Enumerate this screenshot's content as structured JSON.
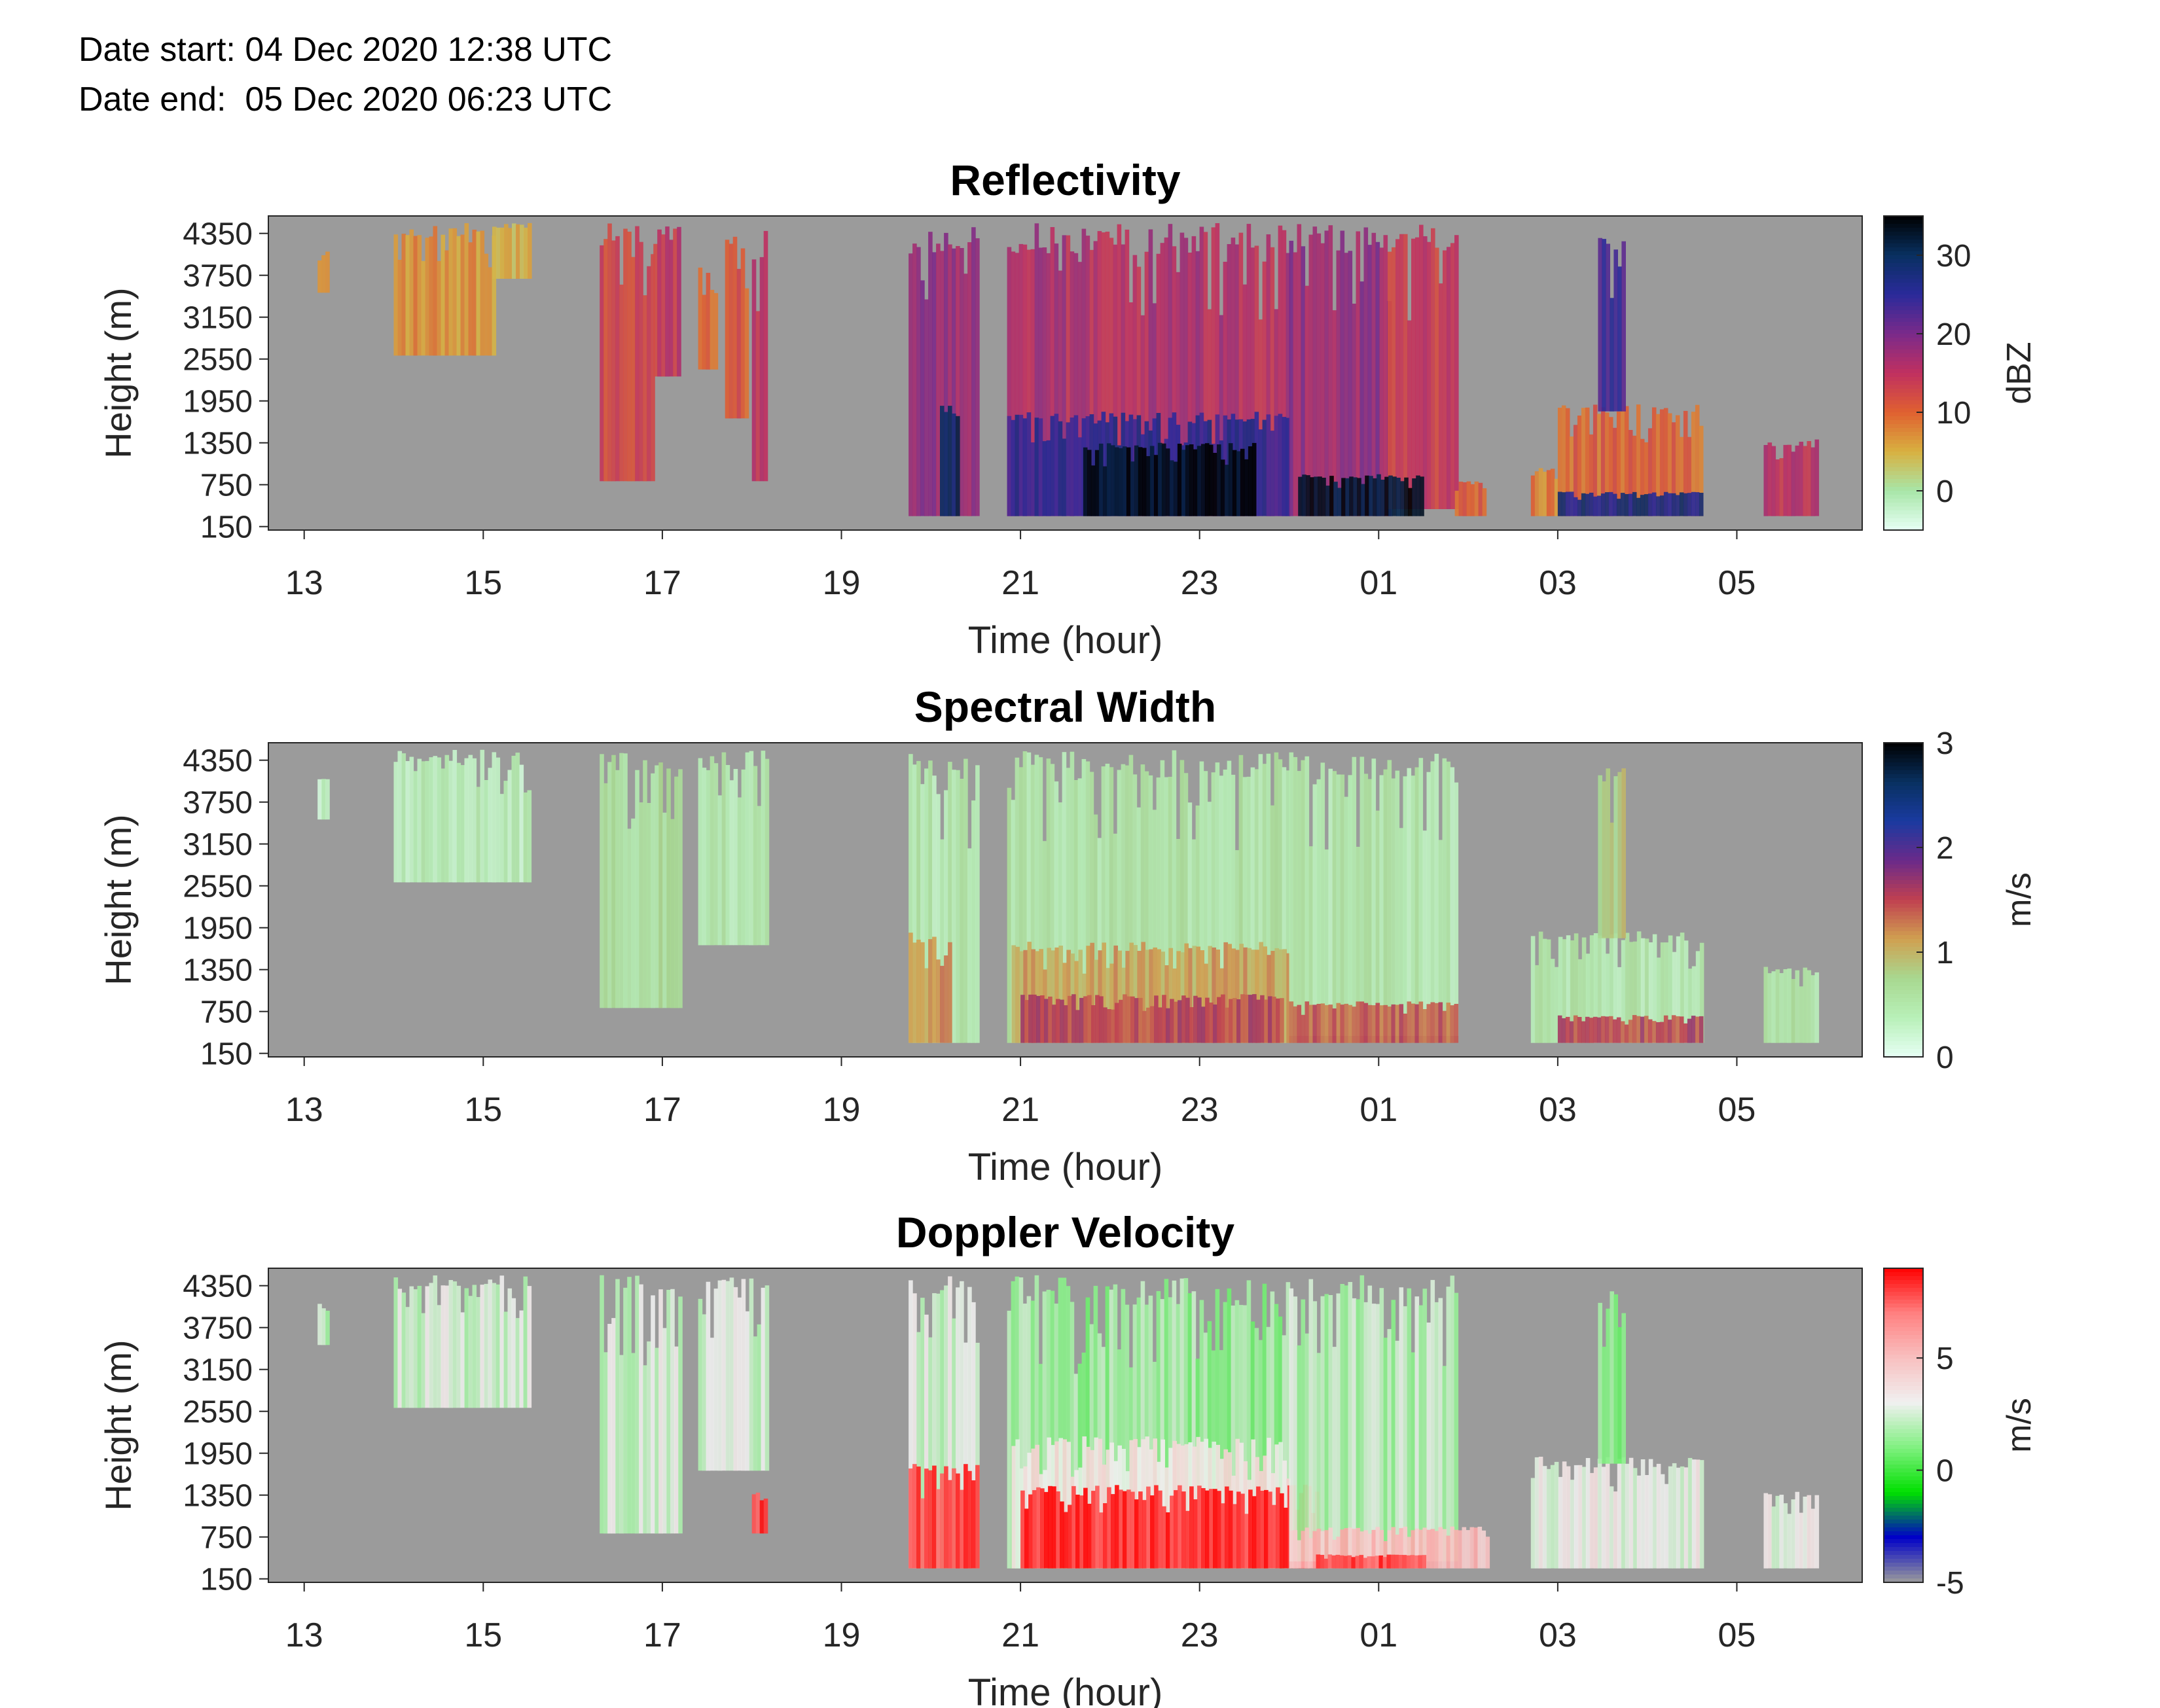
{
  "header": {
    "date_start": "Date start: 04 Dec 2020 12:38 UTC",
    "date_end": "Date end:  05 Dec 2020 06:23 UTC"
  },
  "chart_data": [
    {
      "type": "heatmap",
      "title": "Reflectivity",
      "xlabel": "Time (hour)",
      "ylabel": "Height (m)",
      "x_ticks": [
        "13",
        "15",
        "17",
        "19",
        "21",
        "23",
        "01",
        "03",
        "05"
      ],
      "y_ticks": [
        "4350",
        "3750",
        "3150",
        "2550",
        "1950",
        "1350",
        "750",
        "150"
      ],
      "colorbar_label": "dBZ",
      "colorbar_ticks": [
        "30",
        "20",
        "10",
        "0"
      ],
      "colorbar_range": [
        -5,
        35
      ],
      "colormap": [
        "#e6fff4",
        "#a8e6a8",
        "#d8b040",
        "#e06030",
        "#c03060",
        "#7a2a8a",
        "#2a2a9a",
        "#083060",
        "#000000"
      ],
      "no_data_color": "#9b9b9b",
      "echoes": [
        {
          "t0": 13.15,
          "t1": 13.25,
          "h0": 3500,
          "h1": 4100,
          "v": 6
        },
        {
          "t0": 14.0,
          "t1": 15.1,
          "h0": 2600,
          "h1": 4500,
          "v": 7
        },
        {
          "t0": 15.1,
          "t1": 15.5,
          "h0": 3700,
          "h1": 4500,
          "v": 5
        },
        {
          "t0": 16.3,
          "t1": 16.9,
          "h0": 800,
          "h1": 4500,
          "v": 12
        },
        {
          "t0": 16.9,
          "t1": 17.2,
          "h0": 2300,
          "h1": 4500,
          "v": 14
        },
        {
          "t0": 17.4,
          "t1": 17.6,
          "h0": 2400,
          "h1": 3900,
          "v": 10
        },
        {
          "t0": 17.7,
          "t1": 17.95,
          "h0": 1700,
          "h1": 4400,
          "v": 11
        },
        {
          "t0": 18.0,
          "t1": 18.15,
          "h0": 800,
          "h1": 4500,
          "v": 14
        },
        {
          "t0": 19.75,
          "t1": 20.5,
          "h0": 300,
          "h1": 4500,
          "v": 18
        },
        {
          "t0": 20.1,
          "t1": 20.3,
          "h0": 300,
          "h1": 1900,
          "v": 30
        },
        {
          "t0": 20.85,
          "t1": 24.0,
          "h0": 300,
          "h1": 4500,
          "v": 16
        },
        {
          "t0": 20.85,
          "t1": 24.0,
          "h0": 300,
          "h1": 1800,
          "v": 25
        },
        {
          "t0": 21.7,
          "t1": 23.6,
          "h0": 300,
          "h1": 1350,
          "v": 34
        },
        {
          "t0": 24.0,
          "t1": 25.1,
          "h0": 300,
          "h1": 4500,
          "v": 18
        },
        {
          "t0": 25.1,
          "t1": 25.85,
          "h0": 400,
          "h1": 4500,
          "v": 14
        },
        {
          "t0": 24.1,
          "t1": 25.5,
          "h0": 300,
          "h1": 900,
          "v": 33
        },
        {
          "t0": 25.85,
          "t1": 26.2,
          "h0": 300,
          "h1": 800,
          "v": 10
        },
        {
          "t0": 26.7,
          "t1": 27.0,
          "h0": 300,
          "h1": 1000,
          "v": 8
        },
        {
          "t0": 27.0,
          "t1": 28.6,
          "h0": 300,
          "h1": 1900,
          "v": 10
        },
        {
          "t0": 27.0,
          "t1": 28.6,
          "h0": 300,
          "h1": 650,
          "v": 27
        },
        {
          "t0": 27.45,
          "t1": 27.75,
          "h0": 1800,
          "h1": 4300,
          "v": 24
        },
        {
          "t0": 29.3,
          "t1": 29.9,
          "h0": 300,
          "h1": 1400,
          "v": 15
        }
      ]
    },
    {
      "type": "heatmap",
      "title": "Spectral Width",
      "xlabel": "Time (hour)",
      "ylabel": "Height (m)",
      "x_ticks": [
        "13",
        "15",
        "17",
        "19",
        "21",
        "23",
        "01",
        "03",
        "05"
      ],
      "y_ticks": [
        "4350",
        "3750",
        "3150",
        "2550",
        "1950",
        "1350",
        "750",
        "150"
      ],
      "colorbar_label": "m/s",
      "colorbar_ticks": [
        "3",
        "2",
        "1",
        "0"
      ],
      "colorbar_range": [
        0,
        3
      ],
      "colormap": [
        "#e6fff4",
        "#b8f0b8",
        "#a8d890",
        "#d0a050",
        "#c04050",
        "#6a2a8a",
        "#1a3aa0",
        "#083060",
        "#000000"
      ],
      "no_data_color": "#9b9b9b",
      "echoes": [
        {
          "t0": 13.15,
          "t1": 13.25,
          "h0": 3500,
          "h1": 4100,
          "v": 0.3
        },
        {
          "t0": 14.0,
          "t1": 15.5,
          "h0": 2600,
          "h1": 4500,
          "v": 0.35
        },
        {
          "t0": 16.3,
          "t1": 17.2,
          "h0": 800,
          "h1": 4500,
          "v": 0.6
        },
        {
          "t0": 17.4,
          "t1": 18.15,
          "h0": 1700,
          "h1": 4500,
          "v": 0.45
        },
        {
          "t0": 19.75,
          "t1": 20.5,
          "h0": 300,
          "h1": 4500,
          "v": 0.45
        },
        {
          "t0": 19.75,
          "t1": 20.2,
          "h0": 300,
          "h1": 1900,
          "v": 1.2
        },
        {
          "t0": 20.85,
          "t1": 24.0,
          "h0": 300,
          "h1": 4500,
          "v": 0.5
        },
        {
          "t0": 20.9,
          "t1": 24.0,
          "h0": 300,
          "h1": 1750,
          "v": 1.1
        },
        {
          "t0": 21.0,
          "t1": 23.9,
          "h0": 300,
          "h1": 1000,
          "v": 1.5
        },
        {
          "t0": 24.0,
          "t1": 25.85,
          "h0": 400,
          "h1": 4500,
          "v": 0.45
        },
        {
          "t0": 24.0,
          "t1": 25.85,
          "h0": 300,
          "h1": 900,
          "v": 1.4
        },
        {
          "t0": 26.7,
          "t1": 28.6,
          "h0": 300,
          "h1": 1900,
          "v": 0.45
        },
        {
          "t0": 27.45,
          "t1": 27.75,
          "h0": 1800,
          "h1": 4300,
          "v": 0.8
        },
        {
          "t0": 27.0,
          "t1": 28.6,
          "h0": 300,
          "h1": 700,
          "v": 1.5
        },
        {
          "t0": 29.3,
          "t1": 29.9,
          "h0": 300,
          "h1": 1400,
          "v": 0.5
        }
      ]
    },
    {
      "type": "heatmap",
      "title": "Doppler Velocity",
      "xlabel": "Time (hour)",
      "ylabel": "Height (m)",
      "x_ticks": [
        "13",
        "15",
        "17",
        "19",
        "21",
        "23",
        "01",
        "03",
        "05"
      ],
      "y_ticks": [
        "4350",
        "3750",
        "3150",
        "2550",
        "1950",
        "1350",
        "750",
        "150"
      ],
      "colorbar_label": "m/s",
      "colorbar_ticks": [
        "5",
        "0",
        "-5"
      ],
      "colorbar_range": [
        -5,
        9
      ],
      "colormap": [
        "#9b9b9b",
        "#0000c8",
        "#00e000",
        "#80f080",
        "#f0f0f0",
        "#f8c0c0",
        "#ff8080",
        "#ff0000"
      ],
      "no_data_color": "#9b9b9b",
      "echoes": [
        {
          "t0": 13.15,
          "t1": 13.25,
          "h0": 3500,
          "h1": 4100,
          "v": 2.0
        },
        {
          "t0": 14.0,
          "t1": 15.5,
          "h0": 2600,
          "h1": 4500,
          "v": 2.5
        },
        {
          "t0": 16.3,
          "t1": 17.2,
          "h0": 800,
          "h1": 4500,
          "v": 2.5
        },
        {
          "t0": 17.4,
          "t1": 18.15,
          "h0": 1700,
          "h1": 4500,
          "v": 2.5
        },
        {
          "t0": 18.0,
          "t1": 18.15,
          "h0": 800,
          "h1": 1400,
          "v": 8.0
        },
        {
          "t0": 19.75,
          "t1": 20.5,
          "h0": 300,
          "h1": 4500,
          "v": 2.5
        },
        {
          "t0": 19.75,
          "t1": 20.5,
          "h0": 300,
          "h1": 1800,
          "v": 8.0
        },
        {
          "t0": 20.85,
          "t1": 24.0,
          "h0": 300,
          "h1": 4500,
          "v": 1.5
        },
        {
          "t0": 20.9,
          "t1": 24.0,
          "h0": 300,
          "h1": 2200,
          "v": 3.5
        },
        {
          "t0": 21.0,
          "t1": 24.3,
          "h0": 300,
          "h1": 1500,
          "v": 8.5
        },
        {
          "t0": 24.0,
          "t1": 25.85,
          "h0": 400,
          "h1": 4500,
          "v": 2.0
        },
        {
          "t0": 24.0,
          "t1": 26.2,
          "h0": 300,
          "h1": 900,
          "v": 5.0
        },
        {
          "t0": 24.3,
          "t1": 25.5,
          "h0": 300,
          "h1": 500,
          "v": 8.0
        },
        {
          "t0": 26.7,
          "t1": 28.6,
          "h0": 300,
          "h1": 1900,
          "v": 3.0
        },
        {
          "t0": 27.45,
          "t1": 27.75,
          "h0": 1800,
          "h1": 4300,
          "v": 1.0
        },
        {
          "t0": 29.3,
          "t1": 29.9,
          "h0": 300,
          "h1": 1400,
          "v": 3.0
        }
      ]
    }
  ]
}
